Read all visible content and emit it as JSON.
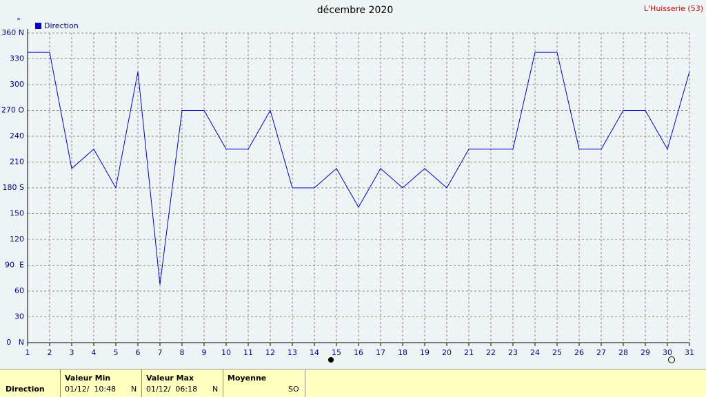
{
  "chart_data": {
    "type": "line",
    "title": "décembre 2020",
    "station": "L'Huisserie (53)",
    "y_unit": "°",
    "x": [
      1,
      2,
      3,
      4,
      5,
      6,
      7,
      8,
      9,
      10,
      11,
      12,
      13,
      14,
      15,
      16,
      17,
      18,
      19,
      20,
      21,
      22,
      23,
      24,
      25,
      26,
      27,
      28,
      29,
      30,
      31
    ],
    "series": [
      {
        "name": "Direction",
        "color": "#0000c8",
        "values": [
          337.5,
          337.5,
          202.5,
          225,
          180,
          315,
          67.5,
          270,
          270,
          225,
          225,
          270,
          180,
          180,
          202.5,
          157.5,
          202.5,
          180,
          202.5,
          180,
          225,
          225,
          225,
          337.5,
          337.5,
          225,
          225,
          270,
          270,
          225,
          315
        ]
      }
    ],
    "xlim": [
      1,
      31
    ],
    "xticks": [
      1,
      2,
      3,
      4,
      5,
      6,
      7,
      8,
      9,
      10,
      11,
      12,
      13,
      14,
      15,
      16,
      17,
      18,
      19,
      20,
      21,
      22,
      23,
      24,
      25,
      26,
      27,
      28,
      29,
      30,
      31
    ],
    "ylim": [
      0,
      360
    ],
    "yticks": [
      {
        "value": 0,
        "label": "0   N"
      },
      30,
      60,
      {
        "value": 90,
        "label": "90  E"
      },
      120,
      150,
      {
        "value": 180,
        "label": "180 S"
      },
      210,
      240,
      {
        "value": 270,
        "label": "270 O"
      },
      300,
      330,
      {
        "value": 360,
        "label": "360 N"
      }
    ],
    "grid": true
  },
  "table": {
    "row_label": "Direction",
    "columns": [
      {
        "header": "Valeur Min",
        "date": "01/12/  10:48",
        "dir": "N"
      },
      {
        "header": "Valeur Max",
        "date": "01/12/  06:18",
        "dir": "N"
      },
      {
        "header": "Moyenne",
        "dir": "SO"
      }
    ]
  }
}
